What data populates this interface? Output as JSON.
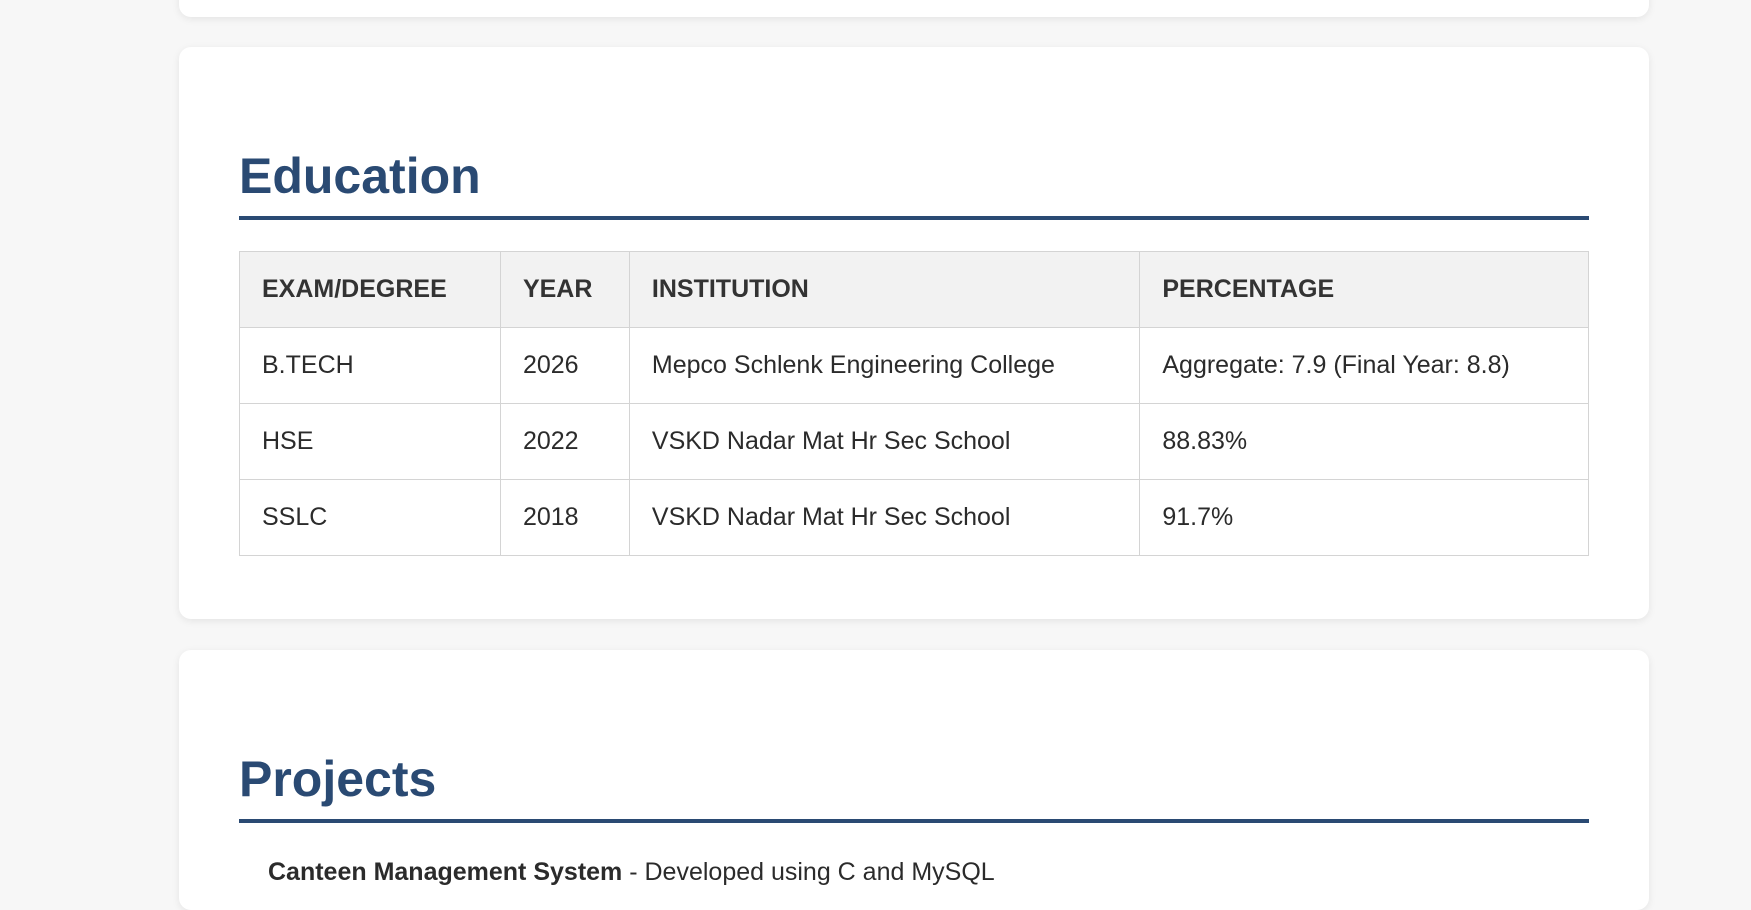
{
  "education": {
    "title": "Education",
    "headers": [
      "EXAM/DEGREE",
      "YEAR",
      "INSTITUTION",
      "PERCENTAGE"
    ],
    "rows": [
      [
        "B.TECH",
        "2026",
        "Mepco Schlenk Engineering College",
        "Aggregate: 7.9 (Final Year: 8.8)"
      ],
      [
        "HSE",
        "2022",
        "VSKD Nadar Mat Hr Sec School",
        "88.83%"
      ],
      [
        "SSLC",
        "2018",
        "VSKD Nadar Mat Hr Sec School",
        "91.7%"
      ]
    ]
  },
  "projects": {
    "title": "Projects",
    "items": [
      {
        "name": "Canteen Management System",
        "description": " - Developed using C and MySQL"
      }
    ]
  },
  "colors": {
    "heading": "#2a4a73",
    "background": "#f7f7f7",
    "card": "#ffffff",
    "table_header_bg": "#f2f2f2"
  }
}
